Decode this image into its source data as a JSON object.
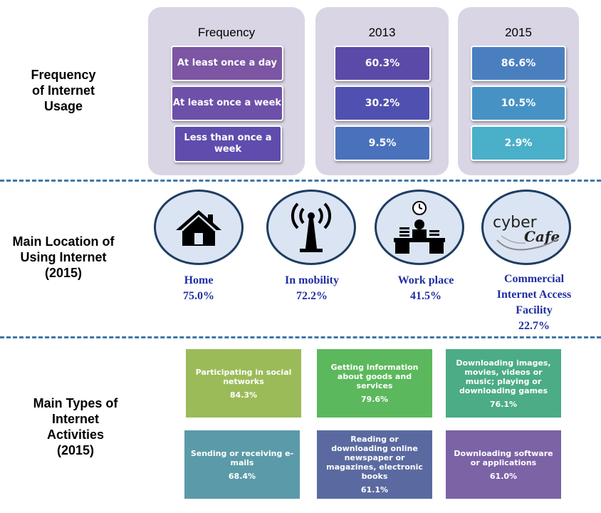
{
  "row_labels": {
    "frequency": [
      "Frequency",
      "of Internet",
      "Usage"
    ],
    "location": [
      "Main Location of",
      "Using Internet",
      "(2015)"
    ],
    "activities": [
      "Main Types of",
      "Internet",
      "Activities",
      "(2015)"
    ]
  },
  "frequency_table": {
    "header": "Frequency",
    "categories": [
      "At least once a day",
      "At least once a week",
      "Less than once a week"
    ],
    "columns": [
      {
        "year": "2013",
        "values": [
          "60.3%",
          "30.2%",
          "9.5%"
        ],
        "colors": [
          "#5b4aa8",
          "#5050b0",
          "#4a72bc"
        ]
      },
      {
        "year": "2015",
        "values": [
          "86.6%",
          "10.5%",
          "2.9%"
        ],
        "colors": [
          "#4a7fbf",
          "#4792c4",
          "#4aafc9"
        ]
      }
    ],
    "category_colors": [
      "#7c55a3",
      "#6d50a8",
      "#5f4cad"
    ],
    "panel_color": "#d9d5e4"
  },
  "locations": [
    {
      "name": "Home",
      "value": "75.0%",
      "icon": "house-icon"
    },
    {
      "name": "In mobility",
      "value": "72.2%",
      "icon": "antenna-icon"
    },
    {
      "name": "Work place",
      "value": "41.5%",
      "icon": "office-desk-icon"
    },
    {
      "name": "Commercial Internet Access Facility",
      "value": "22.7%",
      "icon": "cyber-cafe-icon",
      "logo_text": [
        "cyber",
        "Cafe"
      ]
    }
  ],
  "activities": [
    {
      "label": "Participating in social networks",
      "value": "84.3%",
      "color": "#9bbb59"
    },
    {
      "label": "Getting information about goods and services",
      "value": "79.6%",
      "color": "#5cb85c"
    },
    {
      "label": "Downloading images, movies, videos or music; playing or downloading games",
      "value": "76.1%",
      "color": "#4bac85"
    },
    {
      "label": "Sending or receiving e-mails",
      "value": "68.4%",
      "color": "#5b9aa8"
    },
    {
      "label": "Reading or downloading online newspaper or magazines, electronic books",
      "value": "61.1%",
      "color": "#5a6aa0"
    },
    {
      "label": "Downloading software or applications",
      "value": "61.0%",
      "color": "#7b63a6"
    }
  ],
  "chart_data": [
    {
      "type": "table",
      "title": "Frequency of Internet Usage",
      "categories": [
        "At least once a day",
        "At least once a week",
        "Less than once a week"
      ],
      "series": [
        {
          "name": "2013",
          "values": [
            60.3,
            30.2,
            9.5
          ]
        },
        {
          "name": "2015",
          "values": [
            86.6,
            10.5,
            2.9
          ]
        }
      ],
      "unit": "%"
    },
    {
      "type": "table",
      "title": "Main Location of Using Internet (2015)",
      "categories": [
        "Home",
        "In mobility",
        "Work place",
        "Commercial Internet Access Facility"
      ],
      "values": [
        75.0,
        72.2,
        41.5,
        22.7
      ],
      "unit": "%"
    },
    {
      "type": "table",
      "title": "Main Types of Internet Activities (2015)",
      "categories": [
        "Participating in social networks",
        "Getting information about goods and services",
        "Downloading images, movies, videos or music; playing or downloading games",
        "Sending or receiving e-mails",
        "Reading or downloading online newspaper or magazines, electronic books",
        "Downloading software or applications"
      ],
      "values": [
        84.3,
        79.6,
        76.1,
        68.4,
        61.1,
        61.0
      ],
      "unit": "%"
    }
  ]
}
